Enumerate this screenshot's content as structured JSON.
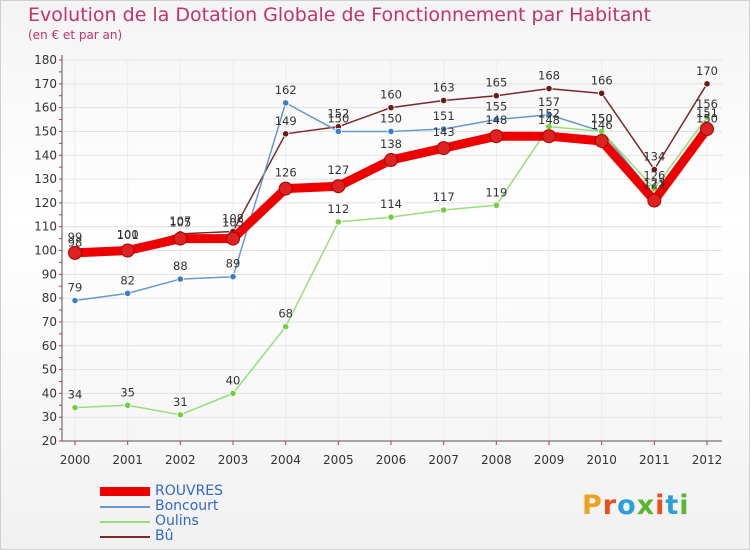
{
  "header": {
    "title": "Evolution de la Dotation Globale de Fonctionnement par Habitant",
    "subtitle": "(en € et par an)"
  },
  "logo": {
    "text": "Proxiti",
    "letters": [
      "P",
      "r",
      "o",
      "x",
      "i",
      "t",
      "i"
    ],
    "colors": [
      "#e8a020",
      "#e8a020",
      "#e8a020",
      "#e8a020",
      "#e8a020",
      "#e8a020",
      "#e8a020"
    ]
  },
  "chart_data": {
    "type": "line",
    "title": "Evolution de la Dotation Globale de Fonctionnement par Habitant",
    "subtitle": "(en € et par an)",
    "xlabel": "",
    "ylabel": "",
    "ylim": [
      20,
      180
    ],
    "yticks": [
      20,
      30,
      40,
      50,
      60,
      70,
      80,
      90,
      100,
      110,
      120,
      130,
      140,
      150,
      160,
      170,
      180
    ],
    "categories": [
      "2000",
      "2001",
      "2002",
      "2003",
      "2004",
      "2005",
      "2006",
      "2007",
      "2008",
      "2009",
      "2010",
      "2011",
      "2012"
    ],
    "grid": true,
    "series": [
      {
        "name": "ROUVRES",
        "color": "#ee0000",
        "marker": "#dd2222",
        "values": [
          99,
          100,
          105,
          105,
          126,
          127,
          138,
          143,
          148,
          148,
          146,
          121,
          151
        ]
      },
      {
        "name": "Boncourt",
        "color": "#6699cc",
        "marker": "#3a7fc4",
        "values": [
          79,
          82,
          88,
          89,
          162,
          150,
          150,
          151,
          155,
          157,
          150,
          123,
          150
        ]
      },
      {
        "name": "Oulins",
        "color": "#99dd77",
        "marker": "#77cc44",
        "values": [
          34,
          35,
          31,
          40,
          68,
          112,
          114,
          117,
          119,
          152,
          150,
          126,
          156
        ]
      },
      {
        "name": "Bû",
        "color": "#7a2828",
        "marker": "#6a1a1a",
        "values": [
          98,
          101,
          107,
          108,
          149,
          152,
          160,
          163,
          165,
          168,
          166,
          134,
          170
        ]
      }
    ]
  }
}
